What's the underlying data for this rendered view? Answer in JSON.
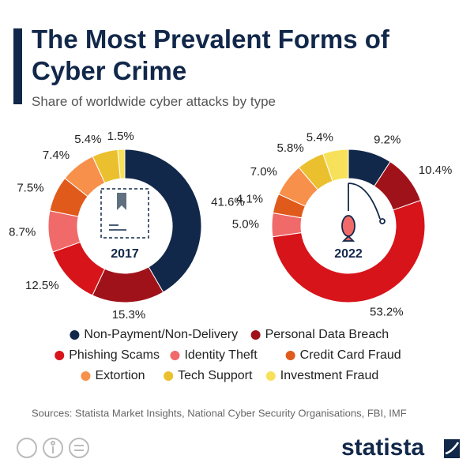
{
  "header": {
    "title": "The Most Prevalent Forms of Cyber Crime",
    "subtitle": "Share of worldwide cyber attacks by type"
  },
  "chart_data": [
    {
      "type": "donut",
      "center_label": "2017",
      "categories": [
        "Non-Payment/Non-Delivery",
        "Personal Data Breach",
        "Phishing Scams",
        "Identity Theft",
        "Credit Card Fraud",
        "Extortion",
        "Tech Support",
        "Investment Fraud"
      ],
      "colors": [
        "#12284a",
        "#a0121a",
        "#d7141a",
        "#f06a6a",
        "#e05a1c",
        "#f7904a",
        "#ebc02e",
        "#f8e15a"
      ],
      "values": [
        41.6,
        15.3,
        12.5,
        8.7,
        7.5,
        7.4,
        5.4,
        1.5
      ],
      "value_labels": [
        "41.6%",
        "15.3%",
        "12.5%",
        "8.7%",
        "7.5%",
        "7.4%",
        "5.4%",
        "1.5%"
      ]
    },
    {
      "type": "donut",
      "center_label": "2022",
      "categories": [
        "Non-Payment/Non-Delivery",
        "Personal Data Breach",
        "Phishing Scams",
        "Identity Theft",
        "Credit Card Fraud",
        "Extortion",
        "Tech Support",
        "Investment Fraud"
      ],
      "colors": [
        "#12284a",
        "#a0121a",
        "#d7141a",
        "#f06a6a",
        "#e05a1c",
        "#f7904a",
        "#ebc02e",
        "#f8e15a"
      ],
      "values": [
        9.2,
        10.4,
        53.2,
        5.0,
        4.1,
        7.0,
        5.8,
        5.4
      ],
      "value_labels": [
        "9.2%",
        "10.4%",
        "53.2%",
        "5.0%",
        "4.1%",
        "7.0%",
        "5.8%",
        "5.4%"
      ]
    }
  ],
  "footer": {
    "source": "Sources: Statista Market Insights, National Cyber Security Organisations, FBI, IMF",
    "brand": "statista"
  }
}
